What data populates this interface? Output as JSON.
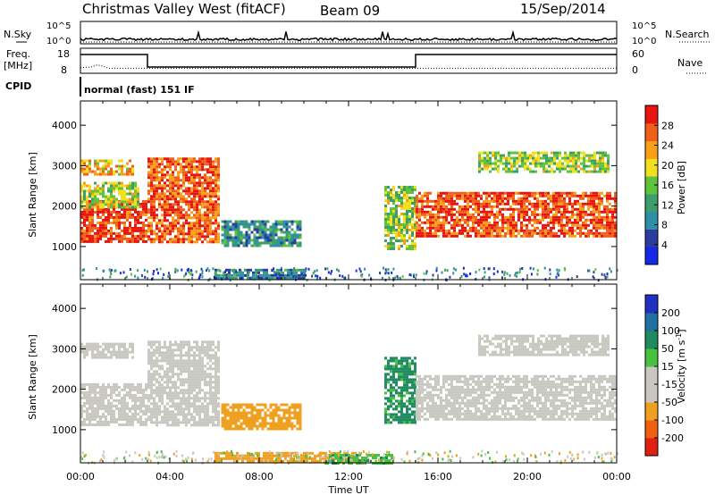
{
  "header": {
    "station": "Christmas Valley West (fitACF)",
    "beam": "Beam 09",
    "date": "15/Sep/2014"
  },
  "nsky_panel": {
    "left_label": "N.Sky",
    "left_ticks": [
      "10^5",
      "10^0"
    ],
    "right_ticks": [
      "10^5",
      "10^0"
    ],
    "right_label": "N.Search"
  },
  "freq_panel": {
    "left_label_line1": "Freq.",
    "left_label_line2": "[MHz]",
    "left_ticks": [
      "18",
      "8"
    ],
    "right_ticks": [
      "60",
      "0"
    ],
    "right_label": "Nave"
  },
  "cpid": {
    "label": "CPID",
    "value": "normal (fast) 151 IF"
  },
  "axes": {
    "ylabel": "Slant Range [km]",
    "xlabel": "Time UT",
    "yticks": [
      "4000",
      "3000",
      "2000",
      "1000"
    ],
    "xticks": [
      "00:00",
      "04:00",
      "08:00",
      "12:00",
      "16:00",
      "20:00",
      "00:00"
    ]
  },
  "power_colorbar": {
    "label": "Power [dB]",
    "ticks": [
      "28",
      "24",
      "20",
      "16",
      "12",
      "8",
      "4"
    ],
    "colors": [
      "#1428e6",
      "#2b3c9e",
      "#2f8fa8",
      "#3e9e6a",
      "#5fc43c",
      "#f0e020",
      "#f8a018",
      "#f06018",
      "#e81410"
    ]
  },
  "velocity_colorbar": {
    "label_main": "Velocity [m s",
    "label_sup": "-1",
    "label_end": "]",
    "ticks": [
      "200",
      "100",
      "50",
      "15",
      "-15",
      "-50",
      "-100",
      "-200"
    ],
    "colors": [
      "#2030c0",
      "#2070a0",
      "#208a60",
      "#48c040",
      "#c8c8c0",
      "#c8c8c0",
      "#f0a020",
      "#f06010",
      "#e02010"
    ]
  },
  "chart_data": {
    "type": "heatmap",
    "x_range_hours_ut": [
      0,
      24
    ],
    "y_range_km": [
      180,
      4600
    ],
    "power_regions": [
      {
        "t0": 0.0,
        "t1": 3.0,
        "r0": 1150,
        "r1": 2150,
        "level": 27
      },
      {
        "t0": 0.0,
        "t1": 2.6,
        "r0": 1950,
        "r1": 2600,
        "level": 17
      },
      {
        "t0": 0.0,
        "t1": 2.4,
        "r0": 2800,
        "r1": 3150,
        "level": 21
      },
      {
        "t0": 3.0,
        "t1": 6.2,
        "r0": 1100,
        "r1": 3200,
        "level": 25
      },
      {
        "t0": 6.3,
        "t1": 9.8,
        "r0": 1000,
        "r1": 1650,
        "level": 10
      },
      {
        "t0": 6.0,
        "t1": 10.0,
        "r0": 200,
        "r1": 450,
        "level": 9
      },
      {
        "t0": 13.6,
        "t1": 15.0,
        "r0": 950,
        "r1": 2500,
        "level": 16
      },
      {
        "t0": 15.0,
        "t1": 24.0,
        "r0": 1250,
        "r1": 2350,
        "level": 26
      },
      {
        "t0": 17.8,
        "t1": 23.6,
        "r0": 2850,
        "r1": 3350,
        "level": 16
      }
    ],
    "velocity_regions": [
      {
        "t0": 0.0,
        "t1": 3.0,
        "r0": 1150,
        "r1": 2150,
        "level": 0
      },
      {
        "t0": 0.0,
        "t1": 2.4,
        "r0": 2800,
        "r1": 3150,
        "level": 0
      },
      {
        "t0": 3.0,
        "t1": 6.2,
        "r0": 1100,
        "r1": 3200,
        "level": 0
      },
      {
        "t0": 6.3,
        "t1": 9.8,
        "r0": 1000,
        "r1": 1650,
        "level": -45
      },
      {
        "t0": 6.0,
        "t1": 12.5,
        "r0": 200,
        "r1": 450,
        "level": -40
      },
      {
        "t0": 11.0,
        "t1": 14.0,
        "r0": 200,
        "r1": 400,
        "level": 25
      },
      {
        "t0": 13.6,
        "t1": 15.0,
        "r0": 1150,
        "r1": 2800,
        "level": 40
      },
      {
        "t0": 15.0,
        "t1": 24.0,
        "r0": 1250,
        "r1": 2350,
        "level": 0
      },
      {
        "t0": 17.8,
        "t1": 23.6,
        "r0": 2850,
        "r1": 3350,
        "level": 0
      }
    ],
    "frequency_mhz": [
      {
        "t0": 0.0,
        "t1": 3.0,
        "value": 15.5
      },
      {
        "t0": 3.0,
        "t1": 15.0,
        "value": 10.5
      },
      {
        "t0": 15.0,
        "t1": 24.0,
        "value": 15.5
      }
    ]
  }
}
